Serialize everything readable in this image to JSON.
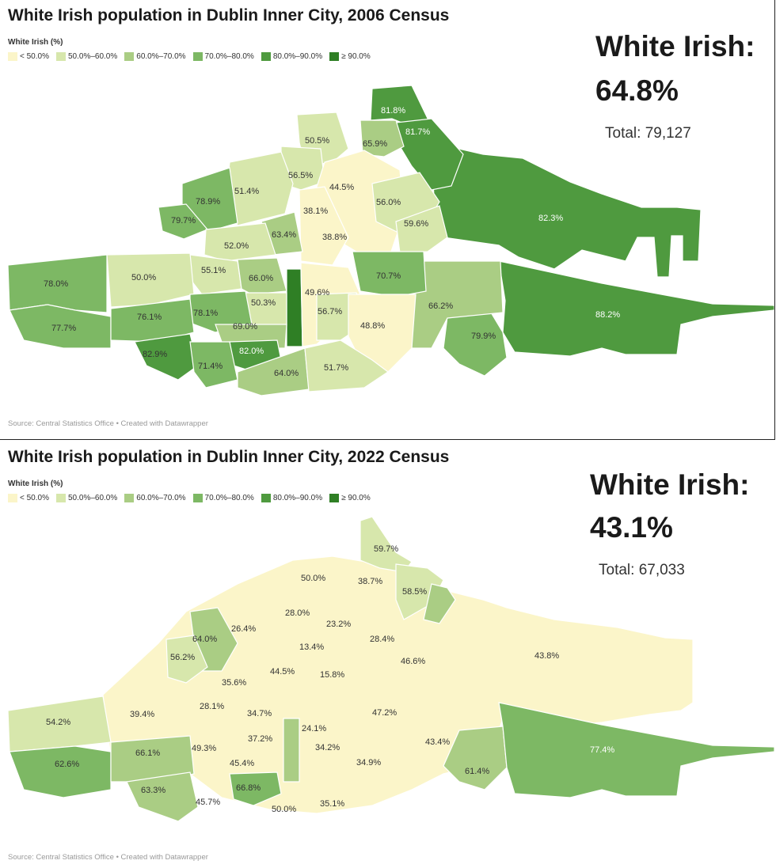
{
  "palette": {
    "lt50": "#fbf5c9",
    "r50_60": "#d7e7ac",
    "r60_70": "#aacd84",
    "r70_80": "#7db864",
    "r80_90": "#4f9a3f",
    "ge90": "#2f7f25"
  },
  "legend": {
    "title": "White Irish (%)",
    "items": [
      {
        "label": "< 50.0%",
        "color": "#fbf5c9"
      },
      {
        "label": "50.0%–60.0%",
        "color": "#d7e7ac"
      },
      {
        "label": "60.0%–70.0%",
        "color": "#aacd84"
      },
      {
        "label": "70.0%–80.0%",
        "color": "#7db864"
      },
      {
        "label": "80.0%–90.0%",
        "color": "#4f9a3f"
      },
      {
        "label": "≥ 90.0%",
        "color": "#2f7f25"
      }
    ]
  },
  "maps": [
    {
      "title": "White Irish population in Dublin Inner City, 2006 Census",
      "big_label": "White Irish:",
      "big_value": "64.8%",
      "total": "Total: 79,127",
      "source": "Source: Central Statistics Office • Created with Datawrapper",
      "areas": [
        "81.8%",
        "50.5%",
        "65.9%",
        "81.7%",
        "56.5%",
        "44.5%",
        "51.4%",
        "78.9%",
        "38.1%",
        "56.0%",
        "79.7%",
        "59.6%",
        "82.3%",
        "63.4%",
        "38.8%",
        "52.0%",
        "55.1%",
        "66.0%",
        "70.7%",
        "78.0%",
        "50.0%",
        "49.6%",
        "50.3%",
        "66.2%",
        "78.1%",
        "56.7%",
        "88.2%",
        "77.7%",
        "76.1%",
        "48.8%",
        "69.0%",
        "79.9%",
        "82.9%",
        "82.0%",
        "71.4%",
        "64.0%",
        "51.7%"
      ]
    },
    {
      "title": "White Irish population in Dublin Inner City, 2022 Census",
      "big_label": "White Irish:",
      "big_value": "43.1%",
      "total": "Total: 67,033",
      "source": "Source: Central Statistics Office • Created with Datawrapper",
      "areas": [
        "59.7%",
        "50.0%",
        "38.7%",
        "58.5%",
        "28.0%",
        "23.2%",
        "26.4%",
        "64.0%",
        "13.4%",
        "28.4%",
        "46.6%",
        "43.8%",
        "56.2%",
        "44.5%",
        "15.8%",
        "35.6%",
        "28.1%",
        "34.7%",
        "47.2%",
        "54.2%",
        "39.4%",
        "24.1%",
        "37.2%",
        "34.2%",
        "43.4%",
        "49.3%",
        "66.1%",
        "45.4%",
        "34.9%",
        "62.6%",
        "61.4%",
        "77.4%",
        "63.3%",
        "66.8%",
        "45.7%",
        "50.0%",
        "35.1%"
      ]
    }
  ]
}
